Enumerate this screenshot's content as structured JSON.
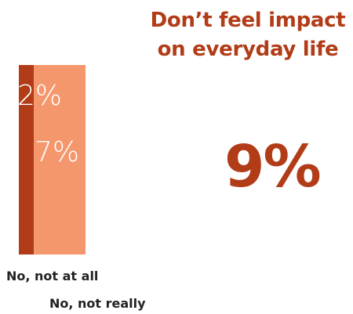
{
  "chart_data": {
    "type": "bar",
    "stacked": "side-by-side segments",
    "title_lines": [
      "Don’t feel impact",
      "on everyday life"
    ],
    "total_label": "9%",
    "series": [
      {
        "name": "No, not at all",
        "value": 2,
        "value_label": "2%",
        "color": "#b13c17"
      },
      {
        "name": "No, not really",
        "value": 7,
        "value_label": "7%",
        "color": "#f4976c"
      }
    ],
    "categories": [
      "No, not at all",
      "No, not really"
    ],
    "xlabel": "",
    "ylabel": "",
    "grid": false,
    "legend": false
  },
  "colors": {
    "accent": "#b13c17",
    "light": "#f4976c",
    "text": "#222222"
  }
}
